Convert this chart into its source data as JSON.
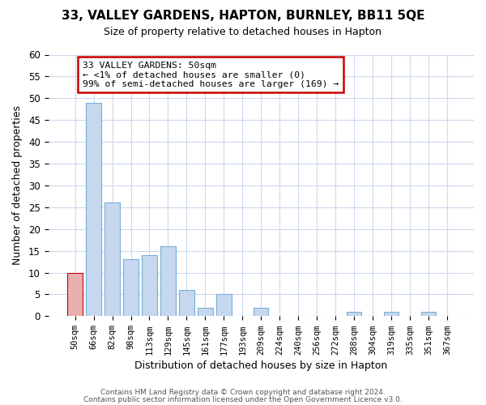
{
  "title": "33, VALLEY GARDENS, HAPTON, BURNLEY, BB11 5QE",
  "subtitle": "Size of property relative to detached houses in Hapton",
  "xlabel": "Distribution of detached houses by size in Hapton",
  "ylabel": "Number of detached properties",
  "bar_color": "#c5d8f0",
  "bar_edge_color": "#7aafd4",
  "categories": [
    "50sqm",
    "66sqm",
    "82sqm",
    "98sqm",
    "113sqm",
    "129sqm",
    "145sqm",
    "161sqm",
    "177sqm",
    "193sqm",
    "209sqm",
    "224sqm",
    "240sqm",
    "256sqm",
    "272sqm",
    "288sqm",
    "304sqm",
    "319sqm",
    "335sqm",
    "351sqm",
    "367sqm"
  ],
  "values": [
    10,
    49,
    26,
    13,
    14,
    16,
    6,
    2,
    5,
    0,
    2,
    0,
    0,
    0,
    0,
    1,
    0,
    1,
    0,
    1,
    0
  ],
  "ylim": [
    0,
    60
  ],
  "yticks": [
    0,
    5,
    10,
    15,
    20,
    25,
    30,
    35,
    40,
    45,
    50,
    55,
    60
  ],
  "annotation_title": "33 VALLEY GARDENS: 50sqm",
  "annotation_line1": "← <1% of detached houses are smaller (0)",
  "annotation_line2": "99% of semi-detached houses are larger (169) →",
  "annotation_box_color": "#ffffff",
  "annotation_box_edge_color": "#cc0000",
  "marker_bar_index": 0,
  "marker_bar_color": "#e8b0b0",
  "marker_bar_edge_color": "#cc0000",
  "footer1": "Contains HM Land Registry data © Crown copyright and database right 2024.",
  "footer2": "Contains public sector information licensed under the Open Government Licence v3.0.",
  "bg_color": "#ffffff",
  "grid_color": "#ccd8ec"
}
